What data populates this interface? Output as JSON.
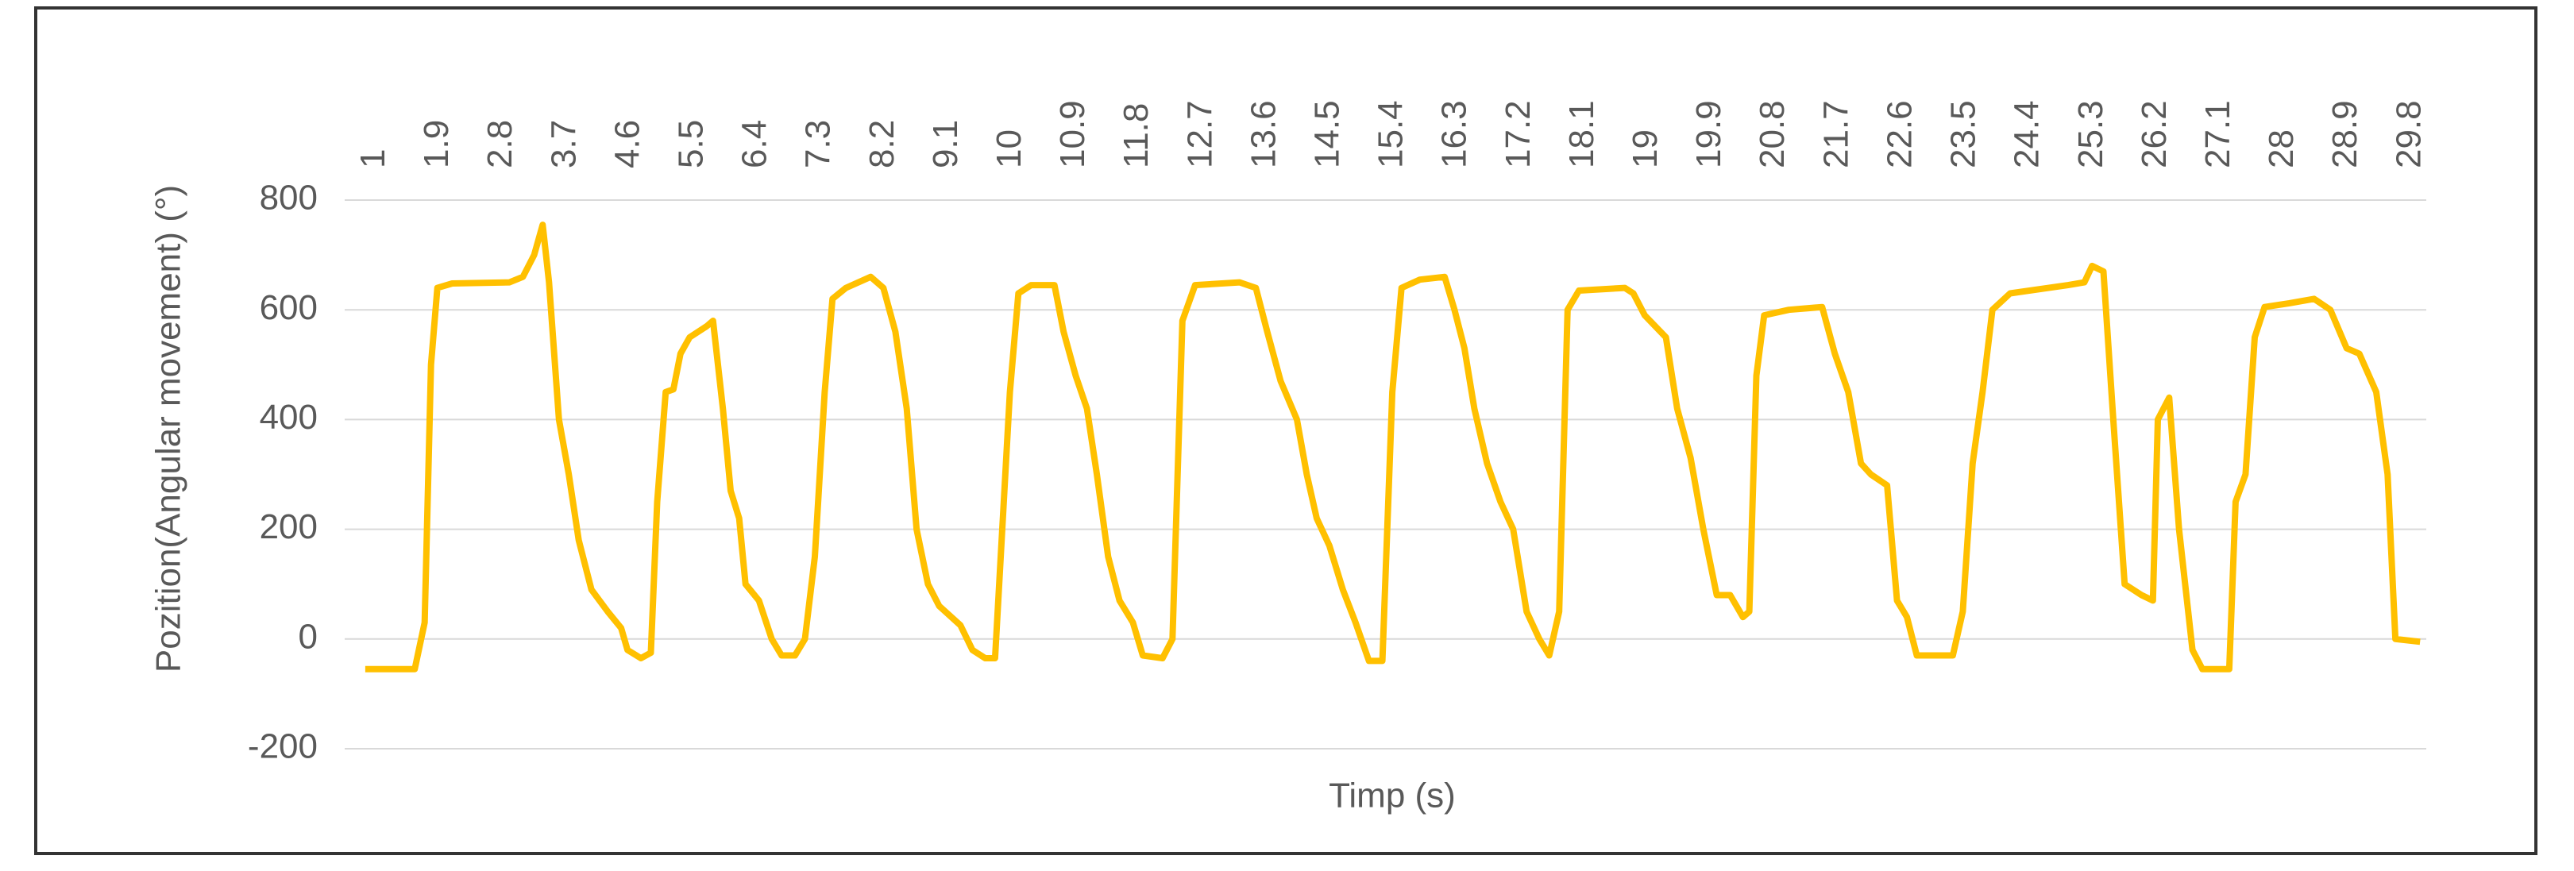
{
  "chart_data": {
    "type": "line",
    "y_label": "Pozition(Angular movement) (°)",
    "x_label": "Timp (s)",
    "xlim": [
      0.85,
      29.95
    ],
    "xticks": [
      1,
      1.9,
      2.8,
      3.7,
      4.6,
      5.5,
      6.4,
      7.3,
      8.2,
      9.1,
      10,
      10.9,
      11.8,
      12.7,
      13.6,
      14.5,
      15.4,
      16.3,
      17.2,
      18.1,
      19,
      19.9,
      20.8,
      21.7,
      22.6,
      23.5,
      24.4,
      25.3,
      26.2,
      27.1,
      28,
      28.9,
      29.8
    ],
    "ylim": [
      -200,
      800
    ],
    "yticks": [
      -200,
      0,
      200,
      400,
      600,
      800
    ],
    "grid": true,
    "series": [
      {
        "name": "Pozition",
        "color": "#ffc000",
        "x": [
          0.86,
          1.56,
          1.7,
          1.79,
          1.88,
          2.09,
          2.9,
          3.09,
          3.25,
          3.37,
          3.46,
          3.6,
          3.74,
          3.88,
          4.06,
          4.29,
          4.48,
          4.57,
          4.76,
          4.9,
          4.99,
          5.11,
          5.22,
          5.32,
          5.45,
          5.69,
          5.78,
          5.92,
          6.03,
          6.15,
          6.24,
          6.43,
          6.61,
          6.75,
          6.94,
          7.08,
          7.22,
          7.36,
          7.47,
          7.66,
          8.01,
          8.19,
          8.36,
          8.52,
          8.66,
          8.82,
          8.98,
          9.28,
          9.45,
          9.63,
          9.77,
          9.98,
          10.1,
          10.28,
          10.61,
          10.74,
          10.91,
          11.07,
          11.21,
          11.37,
          11.53,
          11.72,
          11.86,
          12.14,
          12.28,
          12.42,
          12.6,
          13.23,
          13.46,
          13.62,
          13.81,
          14.04,
          14.18,
          14.32,
          14.5,
          14.69,
          14.87,
          15.06,
          15.25,
          15.39,
          15.52,
          15.78,
          16.13,
          16.27,
          16.41,
          16.55,
          16.73,
          16.92,
          17.1,
          17.29,
          17.47,
          17.61,
          17.75,
          17.87,
          18.03,
          18.68,
          18.8,
          18.96,
          19.26,
          19.42,
          19.61,
          19.79,
          19.98,
          20.17,
          20.35,
          20.44,
          20.54,
          20.65,
          21.0,
          21.47,
          21.65,
          21.84,
          22.02,
          22.16,
          22.39,
          22.53,
          22.67,
          22.81,
          23.32,
          23.46,
          23.6,
          23.74,
          23.88,
          24.13,
          24.95,
          25.18,
          25.29,
          25.45,
          25.59,
          25.75,
          25.99,
          26.15,
          26.22,
          26.38,
          26.52,
          26.71,
          26.85,
          27.23,
          27.32,
          27.46,
          27.59,
          27.73,
          28.08,
          28.43,
          28.66,
          28.89,
          29.07,
          29.31,
          29.47,
          29.58,
          29.93
        ],
        "values": [
          -55,
          -55,
          30,
          500,
          640,
          648,
          650,
          660,
          700,
          755,
          650,
          400,
          300,
          180,
          90,
          50,
          20,
          -20,
          -35,
          -25,
          250,
          450,
          455,
          520,
          550,
          570,
          580,
          420,
          270,
          220,
          100,
          70,
          0,
          -30,
          -30,
          0,
          150,
          450,
          620,
          640,
          660,
          640,
          560,
          420,
          200,
          100,
          60,
          25,
          -20,
          -35,
          -35,
          450,
          630,
          645,
          645,
          560,
          480,
          420,
          300,
          150,
          70,
          30,
          -30,
          -35,
          0,
          580,
          645,
          650,
          640,
          560,
          470,
          400,
          300,
          220,
          170,
          90,
          30,
          -40,
          -40,
          450,
          640,
          655,
          660,
          600,
          530,
          420,
          320,
          250,
          200,
          50,
          0,
          -30,
          50,
          600,
          635,
          640,
          630,
          590,
          550,
          420,
          330,
          200,
          80,
          80,
          40,
          50,
          480,
          590,
          600,
          605,
          520,
          450,
          320,
          300,
          280,
          70,
          40,
          -30,
          -30,
          50,
          320,
          450,
          600,
          630,
          645,
          650,
          680,
          670,
          400,
          100,
          80,
          70,
          400,
          440,
          200,
          -20,
          -55,
          -55,
          250,
          300,
          550,
          605,
          612,
          620,
          600,
          530,
          520,
          450,
          300,
          0,
          -5
        ]
      }
    ]
  }
}
